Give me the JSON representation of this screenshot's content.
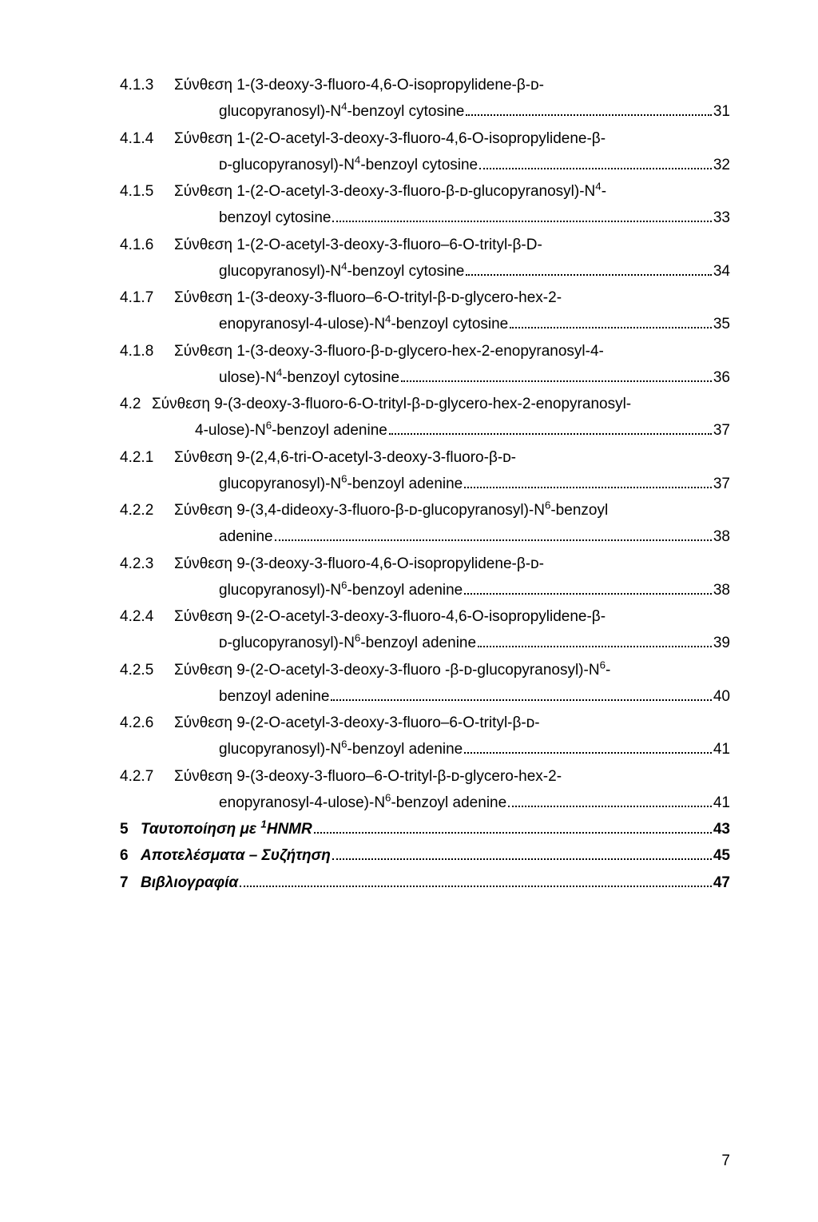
{
  "entries": [
    {
      "indent": "i1",
      "num": "4.1.3",
      "lines": [
        "Σύνθεση 1-(3-deoxy-3-fluoro-4,6-O-isopropylidene-β-ᴅ-"
      ],
      "last": "glucopyranosyl)-N⁴-benzoyl cytosine",
      "lastIndentPx": 124,
      "page": "31"
    },
    {
      "indent": "i1",
      "num": "4.1.4",
      "lines": [
        "Σύνθεση 1-(2-O-acetyl-3-deoxy-3-fluoro-4,6-O-isopropylidene-β-"
      ],
      "last": "ᴅ-glucopyranosyl)-N⁴-benzoyl cytosine",
      "lastIndentPx": 124,
      "page": "32"
    },
    {
      "indent": "i1",
      "num": "4.1.5",
      "lines": [
        "Σύνθεση 1-(2-O-acetyl-3-deoxy-3-fluoro-β-ᴅ-glucopyranosyl)-N⁴-"
      ],
      "last": "benzoyl cytosine",
      "lastIndentPx": 124,
      "page": "33"
    },
    {
      "indent": "i1",
      "num": "4.1.6",
      "lines": [
        "Σύνθεση 1-(2-O-acetyl-3-deoxy-3-fluoro–6-O-trityl-β-D-"
      ],
      "last": "glucopyranosyl)-N⁴-benzoyl cytosine",
      "lastIndentPx": 124,
      "page": "34"
    },
    {
      "indent": "i1",
      "num": "4.1.7",
      "lines": [
        "Σύνθεση 1-(3-deoxy-3-fluoro–6-O-trityl-β-ᴅ-glycero-hex-2-"
      ],
      "last": "enopyranosyl-4-ulose)-N⁴-benzoyl cytosine",
      "lastIndentPx": 124,
      "page": "35"
    },
    {
      "indent": "i1",
      "num": "4.1.8",
      "lines": [
        "Σύνθεση 1-(3-deoxy-3-fluoro-β-ᴅ-glycero-hex-2-enopyranosyl-4-"
      ],
      "last": "ulose)-N⁴-benzoyl cytosine",
      "lastIndentPx": 124,
      "page": "36"
    },
    {
      "indent": "i1",
      "num": "4.2",
      "numWidthPx": 40,
      "lines": [
        "Σύνθεση 9-(3-deoxy-3-fluoro-6-O-trityl-β-ᴅ-glycero-hex-2-enopyranosyl-"
      ],
      "last": "4-ulose)-N⁶-benzoyl adenine",
      "lastIndentPx": 94,
      "page": "37"
    },
    {
      "indent": "i1",
      "num": "4.2.1",
      "lines": [
        "Σύνθεση 9-(2,4,6-tri-O-acetyl-3-deoxy-3-fluoro-β-ᴅ-"
      ],
      "last": "glucopyranosyl)-N⁶-benzoyl adenine",
      "lastIndentPx": 124,
      "page": "37"
    },
    {
      "indent": "i1",
      "num": "4.2.2",
      "lines": [
        "Σύνθεση 9-(3,4-dideoxy-3-fluoro-β-ᴅ-glucopyranosyl)-N⁶-benzoyl"
      ],
      "last": "adenine",
      "lastIndentPx": 124,
      "page": "38"
    },
    {
      "indent": "i1",
      "num": "4.2.3",
      "lines": [
        "Σύνθεση 9-(3-deoxy-3-fluoro-4,6-O-isopropylidene-β-ᴅ-"
      ],
      "last": "glucopyranosyl)-N⁶-benzoyl adenine",
      "lastIndentPx": 124,
      "page": "38"
    },
    {
      "indent": "i1",
      "num": "4.2.4",
      "lines": [
        "Σύνθεση 9-(2-O-acetyl-3-deoxy-3-fluoro-4,6-O-isopropylidene-β-"
      ],
      "last": "ᴅ-glucopyranosyl)-N⁶-benzoyl adenine",
      "lastIndentPx": 124,
      "page": "39"
    },
    {
      "indent": "i1",
      "num": "4.2.5",
      "lines": [
        "Σύνθεση 9-(2-O-acetyl-3-deoxy-3-fluoro -β-ᴅ-glucopyranosyl)-N⁶-"
      ],
      "last": "benzoyl adenine",
      "lastIndentPx": 124,
      "page": "40"
    },
    {
      "indent": "i1",
      "num": "4.2.6",
      "lines": [
        "Σύνθεση 9-(2-O-acetyl-3-deoxy-3-fluoro–6-O-trityl-β-ᴅ-"
      ],
      "last": "glucopyranosyl)-N⁶-benzoyl adenine",
      "lastIndentPx": 124,
      "page": "41"
    },
    {
      "indent": "i1",
      "num": "4.2.7",
      "lines": [
        "Σύνθεση 9-(3-deoxy-3-fluoro–6-O-trityl-β-ᴅ-glycero-hex-2-"
      ],
      "last": "enopyranosyl-4-ulose)-N⁶-benzoyl adenine",
      "lastIndentPx": 124,
      "page": "41"
    },
    {
      "indent": "i1",
      "bold": true,
      "num": "5",
      "italicLabel": true,
      "numWidthPx": 26,
      "lines": [],
      "last": "Ταυτοποίηση με ¹HNMR",
      "lastIndentPx": 0,
      "page": "43"
    },
    {
      "indent": "i1",
      "bold": true,
      "num": "6",
      "italicLabel": true,
      "numWidthPx": 26,
      "lines": [],
      "last": "Αποτελέσματα – Συζήτηση",
      "lastIndentPx": 0,
      "page": "45"
    },
    {
      "indent": "i1",
      "bold": true,
      "num": "7",
      "italicLabel": true,
      "numWidthPx": 26,
      "lines": [],
      "last": "Βιβλιογραφία",
      "lastIndentPx": 0,
      "page": "47"
    }
  ],
  "footer": {
    "pageNumber": "7"
  }
}
